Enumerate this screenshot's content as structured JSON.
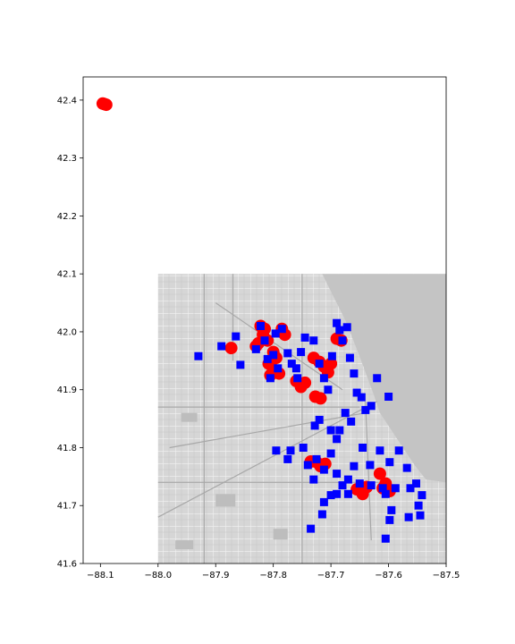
{
  "chart_data": {
    "type": "scatter",
    "title": "",
    "xlabel": "",
    "ylabel": "",
    "xlim": [
      -88.13,
      -87.5
    ],
    "ylim": [
      41.6,
      42.44
    ],
    "xticks": [
      -88.1,
      -88.0,
      -87.9,
      -87.8,
      -87.7,
      -87.6,
      -87.5
    ],
    "xtick_labels": [
      "−88.1",
      "−88.0",
      "−87.9",
      "−87.8",
      "−87.7",
      "−87.6",
      "−87.5"
    ],
    "yticks": [
      41.6,
      41.7,
      41.8,
      41.9,
      42.0,
      42.1,
      42.2,
      42.3,
      42.4
    ],
    "ytick_labels": [
      "41.6",
      "41.7",
      "41.8",
      "41.9",
      "42.0",
      "42.1",
      "42.2",
      "42.3",
      "42.4"
    ],
    "grid": false,
    "basemap": {
      "description": "grayscale city street map",
      "extent_x": [
        -88.0,
        -87.5
      ],
      "extent_y": [
        41.6,
        42.1
      ],
      "lake_color": "#c4c4c4",
      "land_color": "#d9d9d9"
    },
    "series": [
      {
        "marker": "circle",
        "color": "#ff0000",
        "points": [
          [
            -88.093,
            42.393
          ],
          [
            -88.09,
            42.392
          ],
          [
            -88.096,
            42.394
          ],
          [
            -87.873,
            41.972
          ],
          [
            -87.822,
            42.01
          ],
          [
            -87.818,
            41.995
          ],
          [
            -87.826,
            41.98
          ],
          [
            -87.81,
            41.985
          ],
          [
            -87.83,
            41.975
          ],
          [
            -87.815,
            42.005
          ],
          [
            -87.8,
            41.965
          ],
          [
            -87.795,
            41.955
          ],
          [
            -87.808,
            41.945
          ],
          [
            -87.8,
            41.935
          ],
          [
            -87.79,
            41.928
          ],
          [
            -87.805,
            41.925
          ],
          [
            -87.785,
            42.005
          ],
          [
            -87.78,
            41.995
          ],
          [
            -87.76,
            41.915
          ],
          [
            -87.752,
            41.905
          ],
          [
            -87.745,
            41.912
          ],
          [
            -87.73,
            41.955
          ],
          [
            -87.72,
            41.948
          ],
          [
            -87.712,
            41.94
          ],
          [
            -87.705,
            41.93
          ],
          [
            -87.7,
            41.945
          ],
          [
            -87.727,
            41.888
          ],
          [
            -87.718,
            41.885
          ],
          [
            -87.69,
            41.988
          ],
          [
            -87.682,
            41.985
          ],
          [
            -87.725,
            41.775
          ],
          [
            -87.71,
            41.772
          ],
          [
            -87.718,
            41.768
          ],
          [
            -87.735,
            41.776
          ],
          [
            -87.655,
            41.728
          ],
          [
            -87.645,
            41.72
          ],
          [
            -87.638,
            41.732
          ],
          [
            -87.615,
            41.755
          ],
          [
            -87.605,
            41.738
          ],
          [
            -87.598,
            41.725
          ],
          [
            -87.61,
            41.73
          ]
        ]
      },
      {
        "marker": "square",
        "color": "#0000ff",
        "points": [
          [
            -87.93,
            41.958
          ],
          [
            -87.89,
            41.975
          ],
          [
            -87.865,
            41.992
          ],
          [
            -87.857,
            41.943
          ],
          [
            -87.83,
            41.97
          ],
          [
            -87.822,
            42.01
          ],
          [
            -87.815,
            41.985
          ],
          [
            -87.81,
            41.953
          ],
          [
            -87.805,
            41.92
          ],
          [
            -87.8,
            41.96
          ],
          [
            -87.796,
            41.997
          ],
          [
            -87.792,
            41.937
          ],
          [
            -87.785,
            42.005
          ],
          [
            -87.775,
            41.963
          ],
          [
            -87.768,
            41.945
          ],
          [
            -87.76,
            41.937
          ],
          [
            -87.758,
            41.92
          ],
          [
            -87.752,
            41.965
          ],
          [
            -87.745,
            41.99
          ],
          [
            -87.73,
            41.985
          ],
          [
            -87.72,
            41.945
          ],
          [
            -87.712,
            41.92
          ],
          [
            -87.705,
            41.9
          ],
          [
            -87.698,
            41.958
          ],
          [
            -87.69,
            42.015
          ],
          [
            -87.685,
            42.003
          ],
          [
            -87.68,
            41.985
          ],
          [
            -87.672,
            42.008
          ],
          [
            -87.667,
            41.955
          ],
          [
            -87.66,
            41.928
          ],
          [
            -87.655,
            41.895
          ],
          [
            -87.647,
            41.887
          ],
          [
            -87.64,
            41.865
          ],
          [
            -87.63,
            41.872
          ],
          [
            -87.62,
            41.92
          ],
          [
            -87.6,
            41.888
          ],
          [
            -87.675,
            41.86
          ],
          [
            -87.665,
            41.845
          ],
          [
            -87.685,
            41.83
          ],
          [
            -87.69,
            41.815
          ],
          [
            -87.7,
            41.83
          ],
          [
            -87.72,
            41.848
          ],
          [
            -87.728,
            41.838
          ],
          [
            -87.795,
            41.795
          ],
          [
            -87.77,
            41.795
          ],
          [
            -87.775,
            41.78
          ],
          [
            -87.748,
            41.8
          ],
          [
            -87.74,
            41.77
          ],
          [
            -87.73,
            41.745
          ],
          [
            -87.725,
            41.78
          ],
          [
            -87.712,
            41.762
          ],
          [
            -87.7,
            41.79
          ],
          [
            -87.69,
            41.755
          ],
          [
            -87.68,
            41.735
          ],
          [
            -87.67,
            41.745
          ],
          [
            -87.66,
            41.768
          ],
          [
            -87.65,
            41.738
          ],
          [
            -87.645,
            41.8
          ],
          [
            -87.632,
            41.77
          ],
          [
            -87.615,
            41.795
          ],
          [
            -87.61,
            41.73
          ],
          [
            -87.605,
            41.72
          ],
          [
            -87.598,
            41.775
          ],
          [
            -87.588,
            41.73
          ],
          [
            -87.582,
            41.795
          ],
          [
            -87.568,
            41.765
          ],
          [
            -87.562,
            41.73
          ],
          [
            -87.552,
            41.738
          ],
          [
            -87.548,
            41.7
          ],
          [
            -87.542,
            41.718
          ],
          [
            -87.545,
            41.683
          ],
          [
            -87.565,
            41.68
          ],
          [
            -87.595,
            41.692
          ],
          [
            -87.598,
            41.675
          ],
          [
            -87.605,
            41.643
          ],
          [
            -87.63,
            41.735
          ],
          [
            -87.7,
            41.718
          ],
          [
            -87.712,
            41.706
          ],
          [
            -87.715,
            41.685
          ],
          [
            -87.735,
            41.66
          ],
          [
            -87.67,
            41.72
          ],
          [
            -87.69,
            41.72
          ]
        ]
      }
    ]
  }
}
